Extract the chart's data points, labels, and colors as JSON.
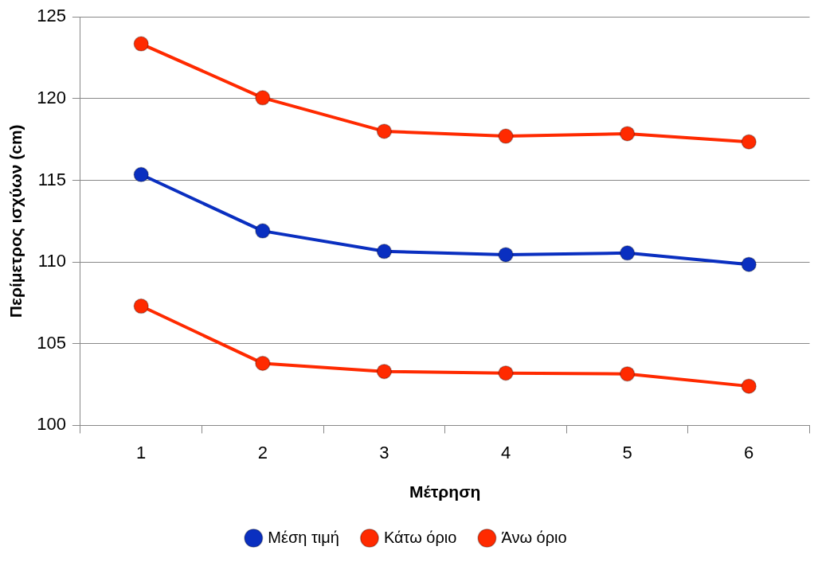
{
  "chart_data": {
    "type": "line",
    "xlabel": "Μέτρηση",
    "ylabel": "Περίμετρος ισχύων (cm)",
    "categories": [
      "1",
      "2",
      "3",
      "4",
      "5",
      "6"
    ],
    "series": [
      {
        "name": "Μέση τιμή",
        "color": "#0a2fc0",
        "values": [
          115.35,
          111.9,
          110.65,
          110.45,
          110.55,
          109.85
        ]
      },
      {
        "name": "Κάτω όριο",
        "color": "#ff2a00",
        "values": [
          107.3,
          103.8,
          103.3,
          103.2,
          103.15,
          102.4
        ]
      },
      {
        "name": "Άνω όριο",
        "color": "#ff2a00",
        "values": [
          123.35,
          120.05,
          118.0,
          117.7,
          117.85,
          117.35
        ]
      }
    ],
    "ylim": [
      100,
      125
    ],
    "yticks": [
      100,
      105,
      110,
      115,
      120,
      125
    ],
    "grid": "y",
    "legend": "bottom",
    "marker": "circle",
    "line_style": "solid"
  }
}
